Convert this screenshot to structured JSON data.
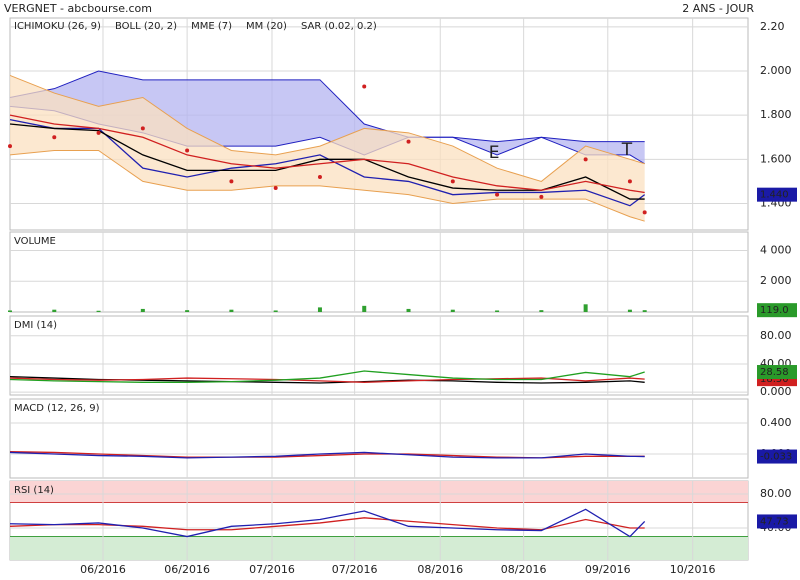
{
  "chart_data": [
    {
      "type": "line",
      "title": "VERGNET - abcbourse.com",
      "subtitle": "2 ANS - JOUR",
      "grid": true,
      "x": [
        0,
        6,
        12,
        18,
        24,
        30,
        36,
        42,
        48,
        54,
        60,
        66,
        72,
        78,
        84,
        86
      ],
      "xlim": [
        0,
        100
      ],
      "ylim": [
        1.28,
        2.24
      ],
      "yticks": [
        {
          "value": 1.4,
          "label": "1.400"
        },
        {
          "value": 1.6,
          "label": "1.600"
        },
        {
          "value": 1.8,
          "label": "1.800"
        },
        {
          "value": 2.0,
          "label": "2.000"
        },
        {
          "value": 2.2,
          "label": "2.20"
        }
      ],
      "series": [
        {
          "name": "ICHIMOKU (26, 9)",
          "style": "band",
          "color": "#2020c0",
          "fill": "#b4b4f0",
          "values": [
            1.88,
            1.92,
            2.0,
            1.96,
            1.96,
            1.96,
            1.96,
            1.96,
            1.76,
            1.7,
            1.7,
            1.68,
            1.7,
            1.68,
            1.68,
            1.68
          ],
          "lower": [
            1.84,
            1.82,
            1.76,
            1.72,
            1.66,
            1.66,
            1.66,
            1.7,
            1.62,
            1.7,
            1.7,
            1.62,
            1.7,
            1.62,
            1.62,
            1.58
          ]
        },
        {
          "name": "BOLL (20, 2)",
          "style": "band",
          "color": "#e8a050",
          "fill": "#fbe0c0",
          "values": [
            1.98,
            1.9,
            1.84,
            1.88,
            1.74,
            1.64,
            1.62,
            1.66,
            1.74,
            1.72,
            1.66,
            1.56,
            1.5,
            1.66,
            1.6,
            1.58
          ],
          "lower": [
            1.62,
            1.64,
            1.64,
            1.5,
            1.46,
            1.46,
            1.48,
            1.48,
            1.46,
            1.44,
            1.4,
            1.42,
            1.42,
            1.42,
            1.34,
            1.32
          ]
        },
        {
          "style": "line",
          "color": "#2020b0",
          "values": [
            1.78,
            1.74,
            1.74,
            1.56,
            1.52,
            1.56,
            1.58,
            1.62,
            1.52,
            1.5,
            1.44,
            1.45,
            1.45,
            1.46,
            1.39,
            1.44
          ]
        },
        {
          "name": "MME (7)",
          "style": "line",
          "color": "#000000",
          "values": [
            1.76,
            1.74,
            1.73,
            1.62,
            1.55,
            1.55,
            1.55,
            1.6,
            1.6,
            1.52,
            1.47,
            1.46,
            1.46,
            1.52,
            1.42,
            1.42
          ]
        },
        {
          "name": "MM (20)",
          "style": "line",
          "color": "#d02020",
          "values": [
            1.8,
            1.76,
            1.74,
            1.7,
            1.62,
            1.58,
            1.56,
            1.58,
            1.6,
            1.58,
            1.52,
            1.48,
            1.46,
            1.5,
            1.46,
            1.45
          ]
        },
        {
          "name": "SAR (0.02, 0.2)",
          "style": "dots",
          "color": "#d02020",
          "values": [
            1.66,
            1.7,
            1.72,
            1.74,
            1.64,
            1.5,
            1.47,
            1.52,
            1.93,
            1.68,
            1.5,
            1.44,
            1.43,
            1.6,
            1.5,
            1.36
          ]
        }
      ],
      "annotations": [
        {
          "text": "E",
          "x": 65.6,
          "y": 1.629
        },
        {
          "text": "T",
          "x": 83.6,
          "y": 1.642
        }
      ],
      "last": [
        {
          "value": 1.44,
          "label": "1.440",
          "color": "#1a1aa6"
        }
      ]
    },
    {
      "type": "bar",
      "title": "VOLUME",
      "grid": true,
      "x": [
        0,
        6,
        12,
        18,
        24,
        30,
        36,
        42,
        48,
        54,
        60,
        66,
        72,
        78,
        84,
        86
      ],
      "xlim": [
        0,
        100
      ],
      "ylim": [
        0,
        5200
      ],
      "yticks": [
        {
          "value": 2000,
          "label": "2 000"
        },
        {
          "value": 4000,
          "label": "4 000"
        }
      ],
      "series": [
        {
          "style": "bars",
          "color": "#30a030",
          "values": [
            100,
            150,
            80,
            200,
            120,
            150,
            100,
            300,
            400,
            200,
            150,
            100,
            120,
            500,
            150,
            119
          ]
        }
      ],
      "last": [
        {
          "value": 119,
          "label": "119.0",
          "color": "#2a9a2a"
        }
      ]
    },
    {
      "type": "line",
      "title": "DMI (14)",
      "grid": true,
      "x": [
        0,
        6,
        12,
        18,
        24,
        30,
        36,
        42,
        48,
        54,
        60,
        66,
        72,
        78,
        84,
        86
      ],
      "xlim": [
        0,
        100
      ],
      "ylim": [
        -4,
        108
      ],
      "yticks": [
        {
          "value": 0,
          "label": "0.000"
        },
        {
          "value": 40,
          "label": "40.00"
        },
        {
          "value": 80,
          "label": "80.00"
        }
      ],
      "series": [
        {
          "style": "line",
          "color": "#000000",
          "values": [
            22,
            20,
            18,
            17,
            16,
            15,
            14,
            13,
            15,
            17,
            16,
            14,
            13,
            14,
            16,
            14
          ]
        },
        {
          "style": "line",
          "color": "#d02020",
          "values": [
            20,
            18,
            17,
            18,
            20,
            19,
            18,
            16,
            14,
            16,
            18,
            19,
            20,
            16,
            20,
            18.5
          ]
        },
        {
          "style": "line",
          "color": "#20a020",
          "values": [
            18,
            16,
            15,
            14,
            14,
            15,
            17,
            20,
            30,
            25,
            20,
            18,
            18,
            28,
            22,
            28.58
          ]
        }
      ],
      "last": [
        {
          "value": 18.5,
          "label": "18.50",
          "color": "#d02020"
        },
        {
          "value": 28.58,
          "label": "28.58",
          "color": "#2a9a2a"
        }
      ]
    },
    {
      "type": "line",
      "title": "MACD (12, 26, 9)",
      "grid": true,
      "x": [
        0,
        6,
        12,
        18,
        24,
        30,
        36,
        42,
        48,
        54,
        60,
        66,
        72,
        78,
        84,
        86
      ],
      "xlim": [
        0,
        100
      ],
      "ylim": [
        -0.31,
        0.71
      ],
      "yticks": [
        {
          "value": 0,
          "label": "0.000"
        },
        {
          "value": 0.4,
          "label": "0.400"
        }
      ],
      "series": [
        {
          "style": "line",
          "color": "#d02020",
          "values": [
            0.03,
            0.02,
            0,
            -0.02,
            -0.04,
            -0.04,
            -0.04,
            -0.02,
            0,
            0,
            -0.02,
            -0.04,
            -0.05,
            -0.03,
            -0.03,
            -0.03
          ]
        },
        {
          "style": "line",
          "color": "#2020b0",
          "values": [
            0.02,
            0,
            -0.02,
            -0.03,
            -0.05,
            -0.04,
            -0.03,
            0,
            0.02,
            -0.01,
            -0.04,
            -0.05,
            -0.05,
            0,
            -0.03,
            -0.033
          ]
        }
      ],
      "last": [
        {
          "value": -0.033,
          "label": "-0.033",
          "color": "#1a1aa6"
        }
      ]
    },
    {
      "type": "line",
      "title": "RSI (14)",
      "grid": true,
      "x": [
        0,
        6,
        12,
        18,
        24,
        30,
        36,
        42,
        48,
        54,
        60,
        66,
        72,
        78,
        84,
        86
      ],
      "xlim": [
        0,
        100
      ],
      "ylim": [
        2.4,
        95.3
      ],
      "yticks": [
        {
          "value": 40,
          "label": "40.00"
        },
        {
          "value": 80,
          "label": "80.00"
        }
      ],
      "upper_zone": 70,
      "lower_zone": 30,
      "xticks": [
        {
          "value": 12.6,
          "label": "06/2016"
        },
        {
          "value": 24,
          "label": "06/2016"
        },
        {
          "value": 35.5,
          "label": "07/2016"
        },
        {
          "value": 46.7,
          "label": "07/2016"
        },
        {
          "value": 58.3,
          "label": "08/2016"
        },
        {
          "value": 69.6,
          "label": "08/2016"
        },
        {
          "value": 81,
          "label": "09/2016"
        },
        {
          "value": 92.5,
          "label": "10/2016"
        }
      ],
      "series": [
        {
          "style": "line",
          "color": "#d02020",
          "values": [
            42,
            44,
            44,
            42,
            38,
            38,
            42,
            46,
            52,
            48,
            44,
            40,
            38,
            50,
            40,
            40
          ]
        },
        {
          "style": "line",
          "color": "#2020b0",
          "values": [
            45,
            44,
            46,
            40,
            30,
            42,
            45,
            50,
            60,
            42,
            40,
            38,
            37,
            62,
            30,
            47.73
          ]
        }
      ],
      "last": [
        {
          "value": 47.73,
          "label": "47.73",
          "color": "#1a1aa6"
        }
      ]
    }
  ]
}
